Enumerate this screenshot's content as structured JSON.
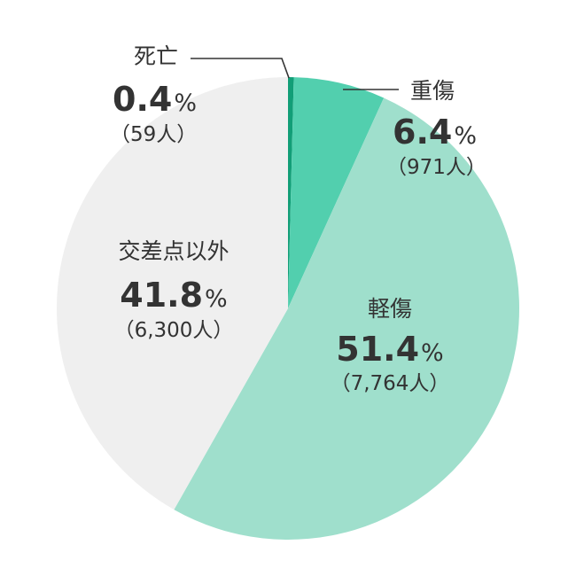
{
  "chart_data": {
    "type": "pie",
    "start_angle_deg": 0,
    "direction": "clockwise",
    "slices": [
      {
        "label": "死亡",
        "percent": 0.4,
        "percent_text": "0.4",
        "count_text": "（59人）",
        "color": "#129e77"
      },
      {
        "label": "重傷",
        "percent": 6.4,
        "percent_text": "6.4",
        "count_text": "（971人）",
        "color": "#52cfae"
      },
      {
        "label": "軽傷",
        "percent": 51.4,
        "percent_text": "51.4",
        "count_text": "（7,764人）",
        "color": "#9fdfcc"
      },
      {
        "label": "交差点以外",
        "percent": 41.8,
        "percent_text": "41.8",
        "count_text": "（6,300人）",
        "color": "#efefef"
      }
    ],
    "percent_sign": "%"
  }
}
